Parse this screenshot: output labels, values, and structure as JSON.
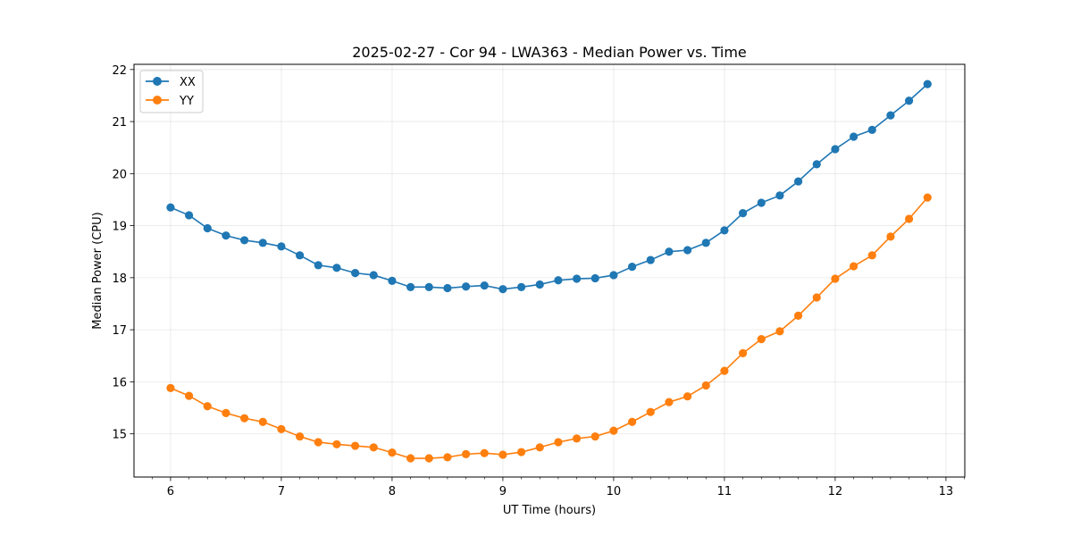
{
  "chart_data": {
    "type": "line",
    "title": "2025-02-27 - Cor 94 - LWA363 - Median Power vs. Time",
    "xlabel": "UT Time (hours)",
    "ylabel": "Median Power (CPU)",
    "xlim": [
      5.67,
      13.17
    ],
    "ylim": [
      14.17,
      22.1
    ],
    "xticks": [
      6,
      7,
      8,
      9,
      10,
      11,
      12,
      13
    ],
    "yticks": [
      15,
      16,
      17,
      18,
      19,
      20,
      21,
      22
    ],
    "grid": true,
    "legend_position": "top-left",
    "x": [
      6.0,
      6.1667,
      6.3333,
      6.5,
      6.6667,
      6.8333,
      7.0,
      7.1667,
      7.3333,
      7.5,
      7.6667,
      7.8333,
      8.0,
      8.1667,
      8.3333,
      8.5,
      8.6667,
      8.8333,
      9.0,
      9.1667,
      9.3333,
      9.5,
      9.6667,
      9.8333,
      10.0,
      10.1667,
      10.3333,
      10.5,
      10.6667,
      10.8333,
      11.0,
      11.1667,
      11.3333,
      11.5,
      11.6667,
      11.8333,
      12.0,
      12.1667,
      12.3333,
      12.5,
      12.6667,
      12.8333
    ],
    "series": [
      {
        "name": "XX",
        "color": "#1f77b4",
        "values": [
          19.35,
          19.2,
          18.95,
          18.81,
          18.72,
          18.67,
          18.6,
          18.43,
          18.24,
          18.19,
          18.09,
          18.05,
          17.94,
          17.82,
          17.82,
          17.8,
          17.83,
          17.85,
          17.78,
          17.82,
          17.87,
          17.95,
          17.98,
          17.99,
          18.05,
          18.21,
          18.34,
          18.5,
          18.53,
          18.67,
          18.91,
          19.24,
          19.44,
          19.58,
          19.85,
          20.18,
          20.47,
          20.71,
          20.84,
          21.12,
          21.4,
          21.72
        ]
      },
      {
        "name": "YY",
        "color": "#ff7f0e",
        "values": [
          15.88,
          15.73,
          15.53,
          15.4,
          15.3,
          15.23,
          15.09,
          14.95,
          14.84,
          14.8,
          14.77,
          14.74,
          14.64,
          14.53,
          14.53,
          14.55,
          14.61,
          14.63,
          14.6,
          14.65,
          14.74,
          14.84,
          14.91,
          14.95,
          15.06,
          15.23,
          15.42,
          15.61,
          15.72,
          15.93,
          16.21,
          16.55,
          16.82,
          16.97,
          17.27,
          17.62,
          17.98,
          18.22,
          18.43,
          18.79,
          19.13,
          19.54
        ]
      }
    ]
  }
}
